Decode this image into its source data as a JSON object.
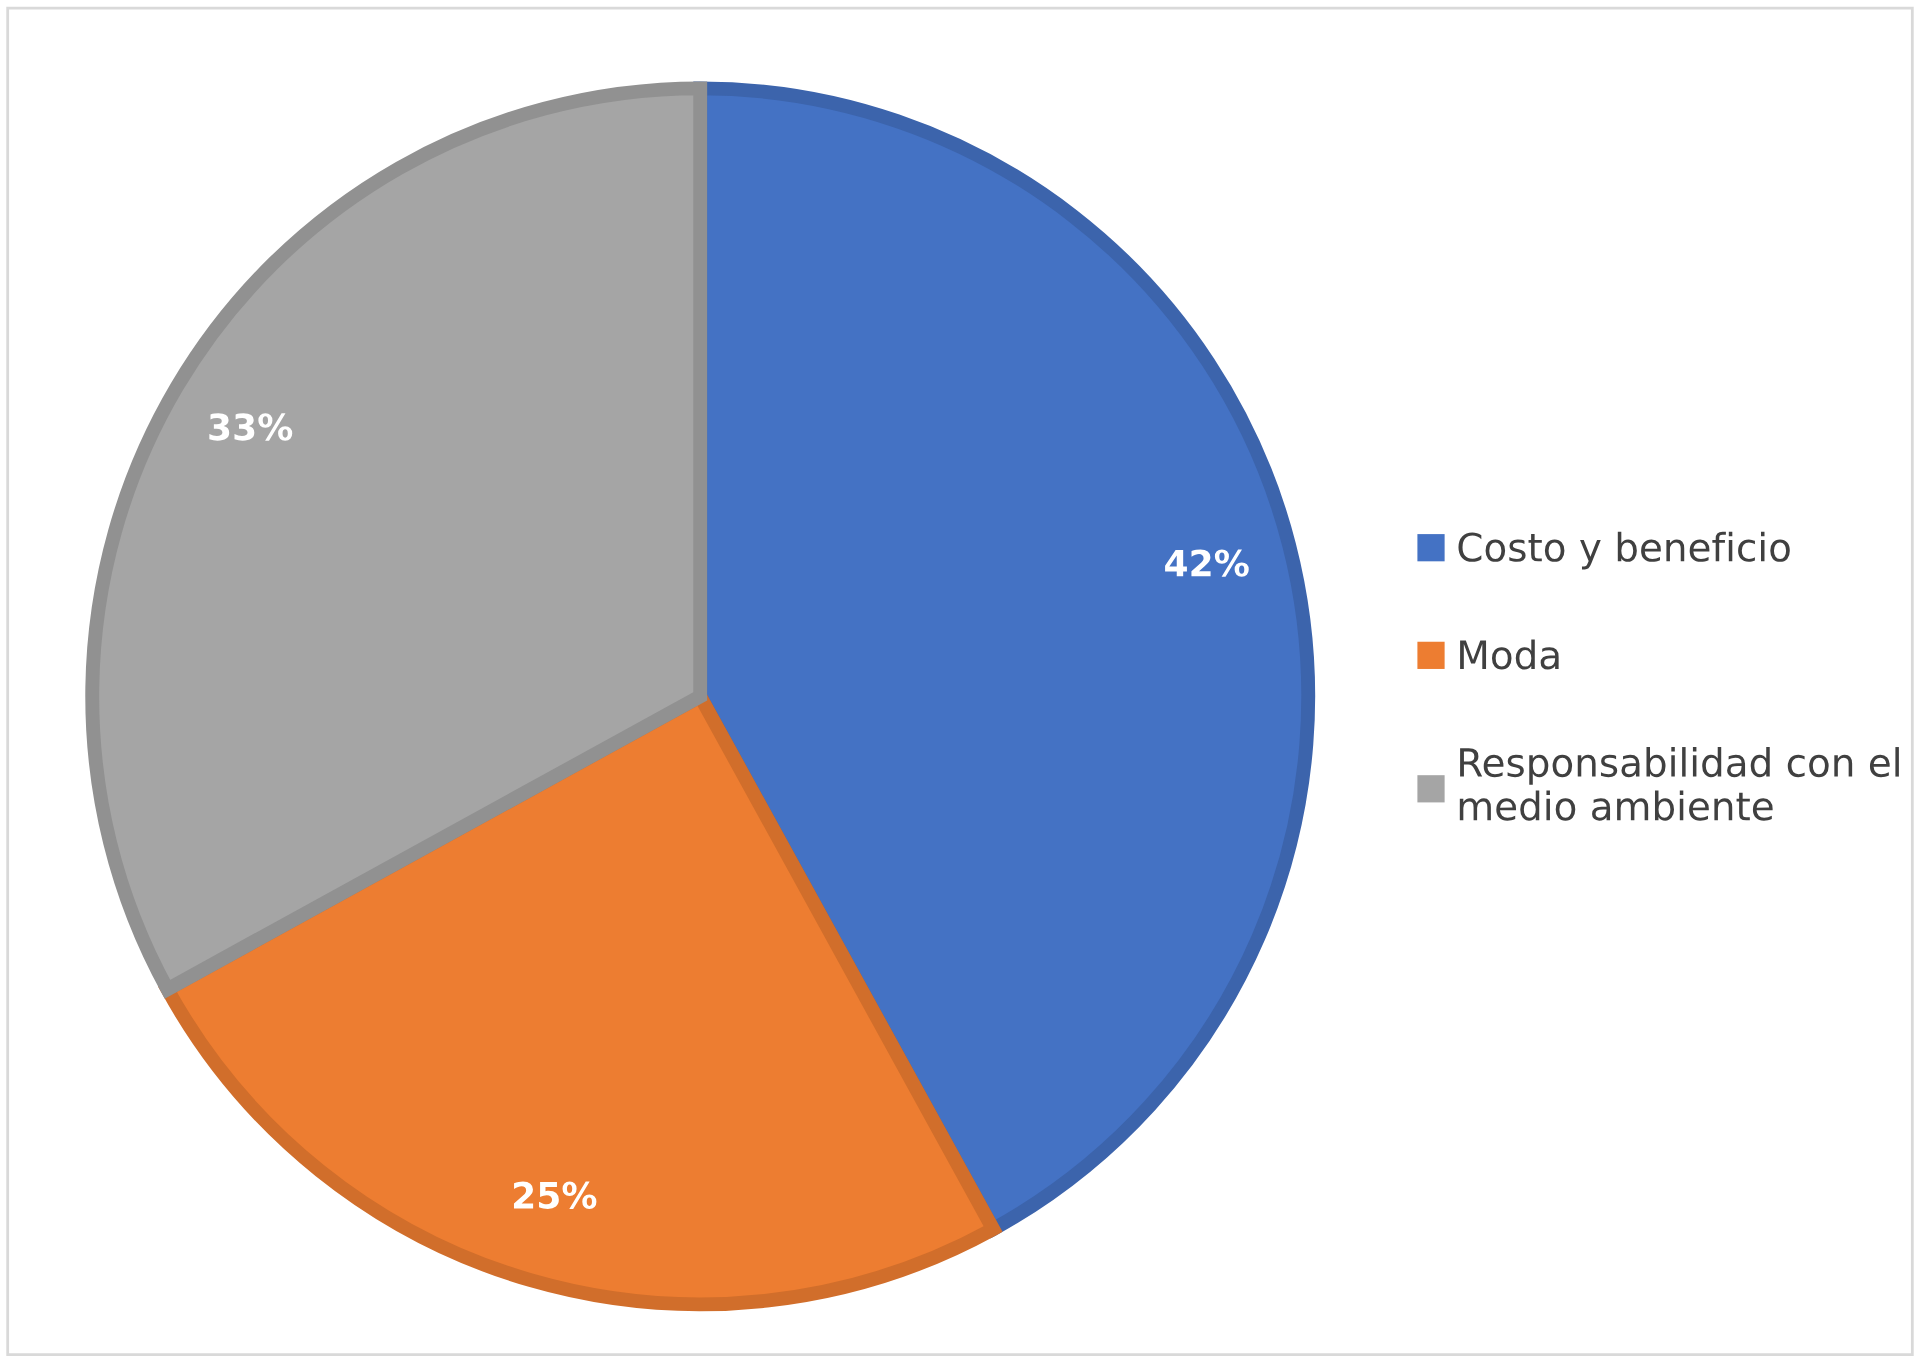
{
  "chart_data": {
    "type": "pie",
    "categories": [
      "Costo y beneficio",
      "Moda",
      "Responsabilidad con el medio ambiente"
    ],
    "values": [
      42,
      25,
      33
    ],
    "colors": [
      "#4472c4",
      "#ed7d31",
      "#a5a5a5"
    ],
    "value_labels": [
      "42%",
      "25%",
      "33%"
    ],
    "legend": "right"
  }
}
